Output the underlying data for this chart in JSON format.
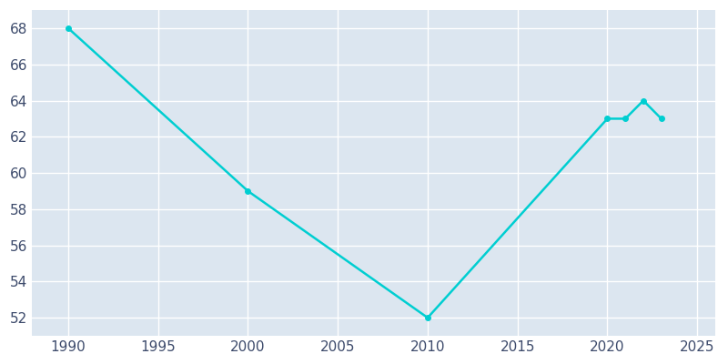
{
  "years": [
    1990,
    2000,
    2010,
    2020,
    2021,
    2022,
    2023
  ],
  "values": [
    68,
    59,
    52,
    63,
    63,
    64,
    63
  ],
  "line_color": "#00CED1",
  "marker_color": "#00CED1",
  "figure_background_color": "#ffffff",
  "plot_bg_color": "#dce6f0",
  "grid_color": "#ffffff",
  "xlabel": "",
  "ylabel": "",
  "xlim": [
    1988,
    2026
  ],
  "ylim": [
    51,
    69
  ],
  "xticks": [
    1990,
    1995,
    2000,
    2005,
    2010,
    2015,
    2020,
    2025
  ],
  "yticks": [
    52,
    54,
    56,
    58,
    60,
    62,
    64,
    66,
    68
  ],
  "tick_label_color": "#3c4a6b",
  "tick_fontsize": 11,
  "linewidth": 1.8,
  "markersize": 4
}
